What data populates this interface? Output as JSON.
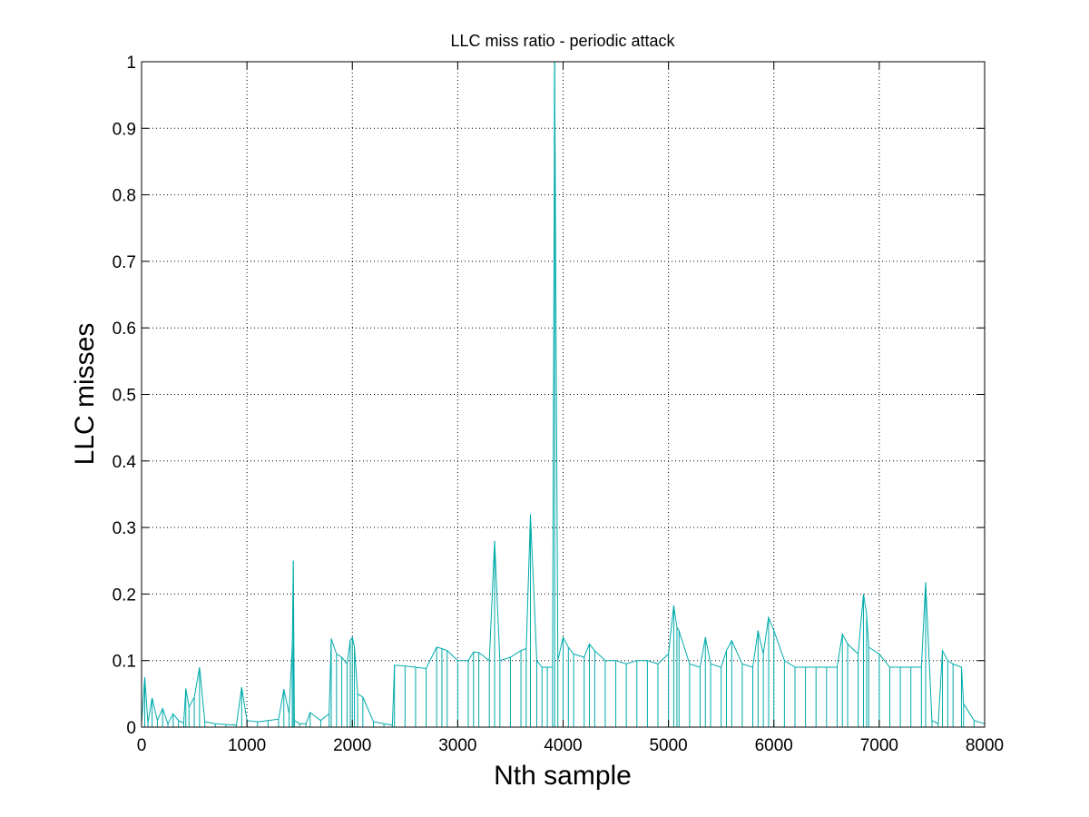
{
  "chart_data": {
    "type": "line",
    "title": "LLC miss ratio - periodic attack",
    "xlabel": "Nth sample",
    "ylabel": "LLC misses",
    "xlim": [
      0,
      8000
    ],
    "ylim": [
      0,
      1
    ],
    "xticks": [
      "0",
      "1000",
      "2000",
      "3000",
      "4000",
      "5000",
      "6000",
      "7000",
      "8000"
    ],
    "yticks": [
      "0",
      "0.1",
      "0.2",
      "0.3",
      "0.4",
      "0.5",
      "0.6",
      "0.7",
      "0.8",
      "0.9",
      "1"
    ],
    "grid": true,
    "grid_style": "dotted",
    "series": [
      {
        "color": "#00aaaa",
        "x": [
          0,
          30,
          60,
          100,
          150,
          200,
          250,
          300,
          350,
          400,
          420,
          450,
          500,
          550,
          600,
          700,
          800,
          900,
          950,
          1000,
          1100,
          1200,
          1300,
          1350,
          1400,
          1430,
          1440,
          1450,
          1500,
          1560,
          1600,
          1700,
          1780,
          1800,
          1850,
          1900,
          1950,
          1980,
          2000,
          2020,
          2050,
          2100,
          2200,
          2300,
          2380,
          2400,
          2500,
          2600,
          2700,
          2800,
          2850,
          2900,
          3000,
          3100,
          3150,
          3200,
          3300,
          3350,
          3400,
          3500,
          3600,
          3650,
          3690,
          3750,
          3800,
          3850,
          3900,
          3920,
          3950,
          4000,
          4050,
          4100,
          4200,
          4250,
          4300,
          4400,
          4500,
          4600,
          4700,
          4800,
          4900,
          5000,
          5050,
          5080,
          5100,
          5200,
          5300,
          5350,
          5400,
          5500,
          5550,
          5600,
          5700,
          5800,
          5850,
          5900,
          5950,
          6000,
          6100,
          6200,
          6300,
          6400,
          6500,
          6600,
          6650,
          6700,
          6800,
          6850,
          6880,
          6900,
          7000,
          7100,
          7200,
          7300,
          7400,
          7440,
          7500,
          7560,
          7600,
          7650,
          7700,
          7780,
          7800,
          7900,
          8000
        ],
        "y": [
          0.005,
          0.075,
          0.006,
          0.044,
          0.01,
          0.028,
          0.005,
          0.02,
          0.01,
          0.006,
          0.058,
          0.03,
          0.045,
          0.09,
          0.008,
          0.005,
          0.004,
          0.003,
          0.06,
          0.01,
          0.008,
          0.01,
          0.012,
          0.057,
          0.02,
          0.125,
          0.25,
          0.01,
          0.005,
          0.005,
          0.022,
          0.01,
          0.02,
          0.133,
          0.11,
          0.105,
          0.095,
          0.13,
          0.135,
          0.12,
          0.05,
          0.045,
          0.008,
          0.005,
          0.003,
          0.093,
          0.092,
          0.09,
          0.088,
          0.12,
          0.118,
          0.115,
          0.1,
          0.1,
          0.113,
          0.112,
          0.1,
          0.28,
          0.1,
          0.105,
          0.115,
          0.118,
          0.32,
          0.1,
          0.09,
          0.09,
          0.09,
          1.0,
          0.1,
          0.135,
          0.12,
          0.11,
          0.105,
          0.125,
          0.115,
          0.1,
          0.1,
          0.095,
          0.1,
          0.1,
          0.095,
          0.11,
          0.183,
          0.15,
          0.145,
          0.095,
          0.09,
          0.135,
          0.095,
          0.09,
          0.115,
          0.13,
          0.095,
          0.09,
          0.145,
          0.11,
          0.165,
          0.145,
          0.1,
          0.09,
          0.09,
          0.09,
          0.09,
          0.09,
          0.14,
          0.125,
          0.11,
          0.2,
          0.17,
          0.12,
          0.11,
          0.09,
          0.09,
          0.09,
          0.09,
          0.218,
          0.01,
          0.005,
          0.115,
          0.1,
          0.095,
          0.09,
          0.035,
          0.01,
          0.005
        ]
      }
    ]
  }
}
